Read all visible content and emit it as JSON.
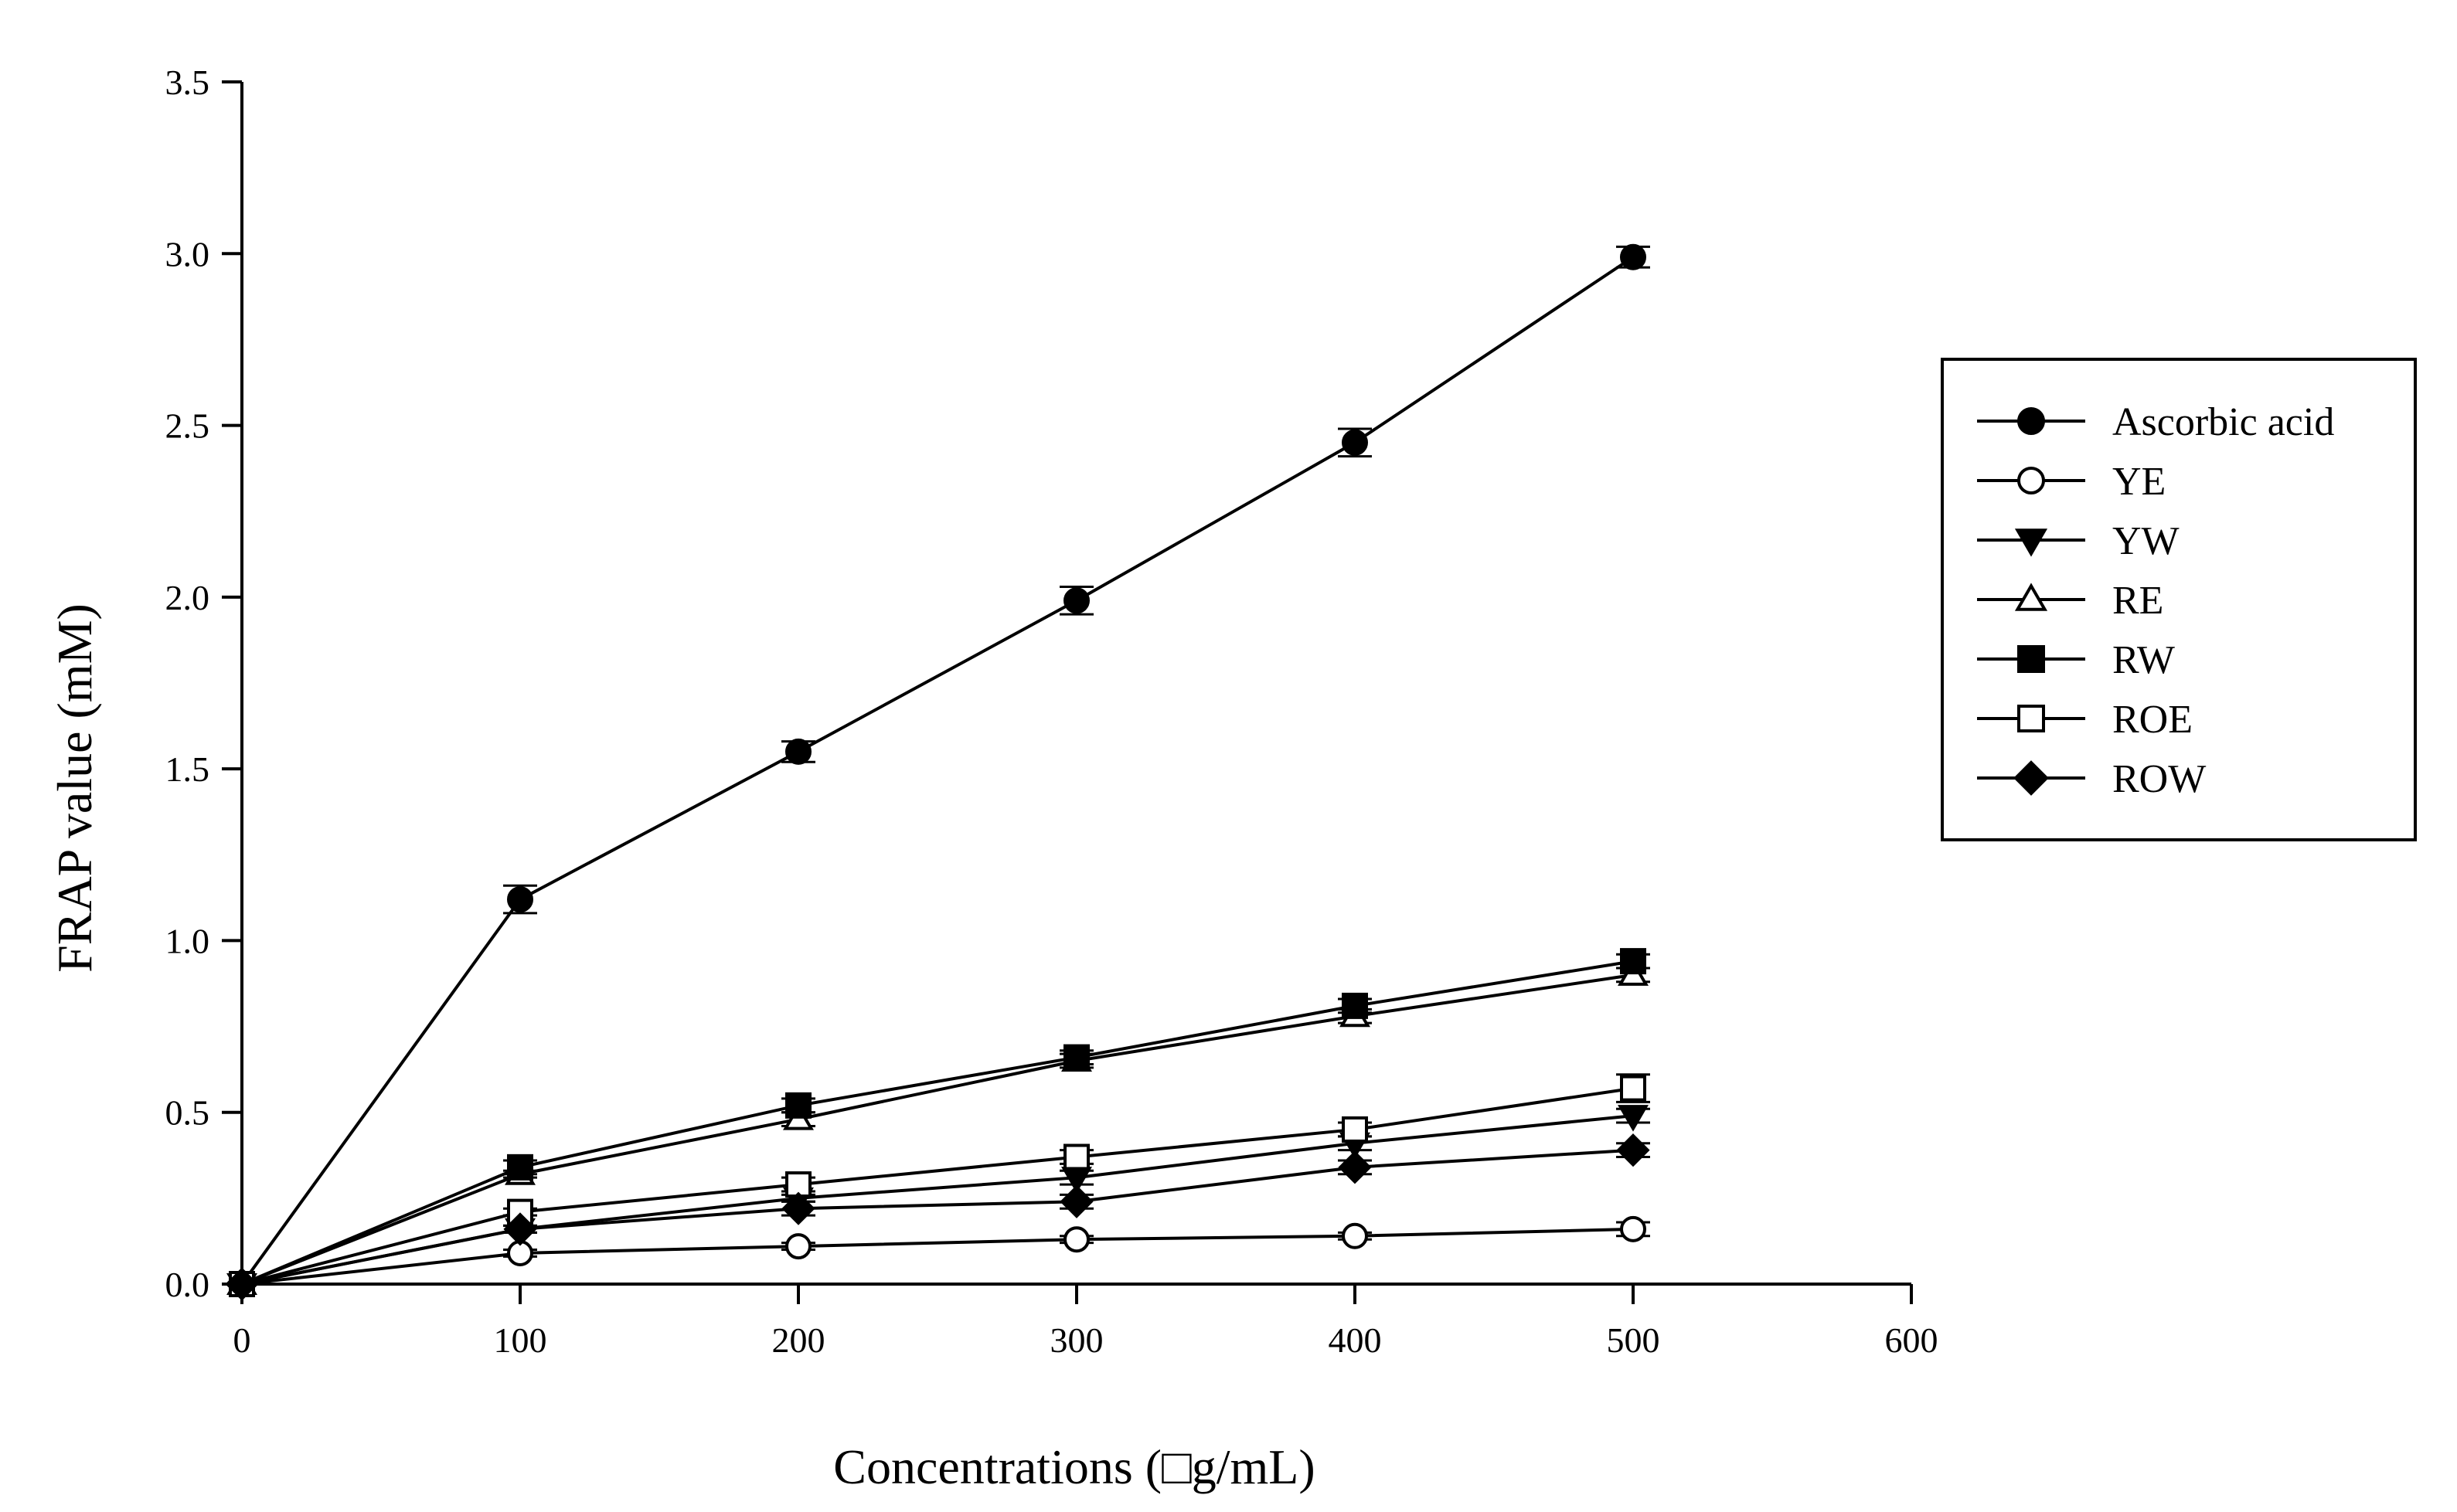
{
  "chart_data": {
    "type": "line",
    "title": "",
    "xlabel": "Concentrations (□g/mL)",
    "ylabel": "FRAP value (mM)",
    "xlim": [
      0,
      600
    ],
    "ylim": [
      0,
      3.5
    ],
    "xticks": [
      0,
      100,
      200,
      300,
      400,
      500,
      600
    ],
    "yticks": [
      "0.0",
      "0.5",
      "1.0",
      "1.5",
      "2.0",
      "2.5",
      "3.0",
      "3.5"
    ],
    "legend_position": "right",
    "x": [
      0,
      100,
      200,
      300,
      400,
      500
    ],
    "series": [
      {
        "name": "Ascorbic acid",
        "marker": "circle-filled",
        "values": [
          0,
          1.12,
          1.55,
          1.99,
          2.45,
          2.99
        ],
        "errors": [
          0,
          0.04,
          0.03,
          0.04,
          0.04,
          0.03
        ]
      },
      {
        "name": "YE",
        "marker": "circle-open",
        "values": [
          0,
          0.09,
          0.11,
          0.13,
          0.14,
          0.16
        ],
        "errors": [
          0,
          0.01,
          0.01,
          0.01,
          0.01,
          0.02
        ]
      },
      {
        "name": "YW",
        "marker": "triangle-down-filled",
        "values": [
          0,
          0.16,
          0.25,
          0.31,
          0.41,
          0.49
        ],
        "errors": [
          0,
          0.01,
          0.01,
          0.02,
          0.02,
          0.02
        ]
      },
      {
        "name": "RE",
        "marker": "triangle-up-open",
        "values": [
          0,
          0.32,
          0.48,
          0.65,
          0.78,
          0.9
        ],
        "errors": [
          0,
          0.01,
          0.02,
          0.02,
          0.02,
          0.02
        ]
      },
      {
        "name": "RW",
        "marker": "square-filled",
        "values": [
          0,
          0.34,
          0.52,
          0.66,
          0.81,
          0.94
        ],
        "errors": [
          0,
          0.02,
          0.02,
          0.02,
          0.02,
          0.02
        ]
      },
      {
        "name": "ROE",
        "marker": "square-open",
        "values": [
          0,
          0.21,
          0.29,
          0.37,
          0.45,
          0.57
        ],
        "errors": [
          0,
          0.01,
          0.02,
          0.02,
          0.02,
          0.04
        ]
      },
      {
        "name": "ROW",
        "marker": "diamond-filled",
        "values": [
          0,
          0.16,
          0.22,
          0.24,
          0.34,
          0.39
        ],
        "errors": [
          0,
          0.01,
          0.02,
          0.02,
          0.02,
          0.02
        ]
      }
    ]
  },
  "colors": {
    "line": "#000000",
    "background": "#ffffff"
  }
}
